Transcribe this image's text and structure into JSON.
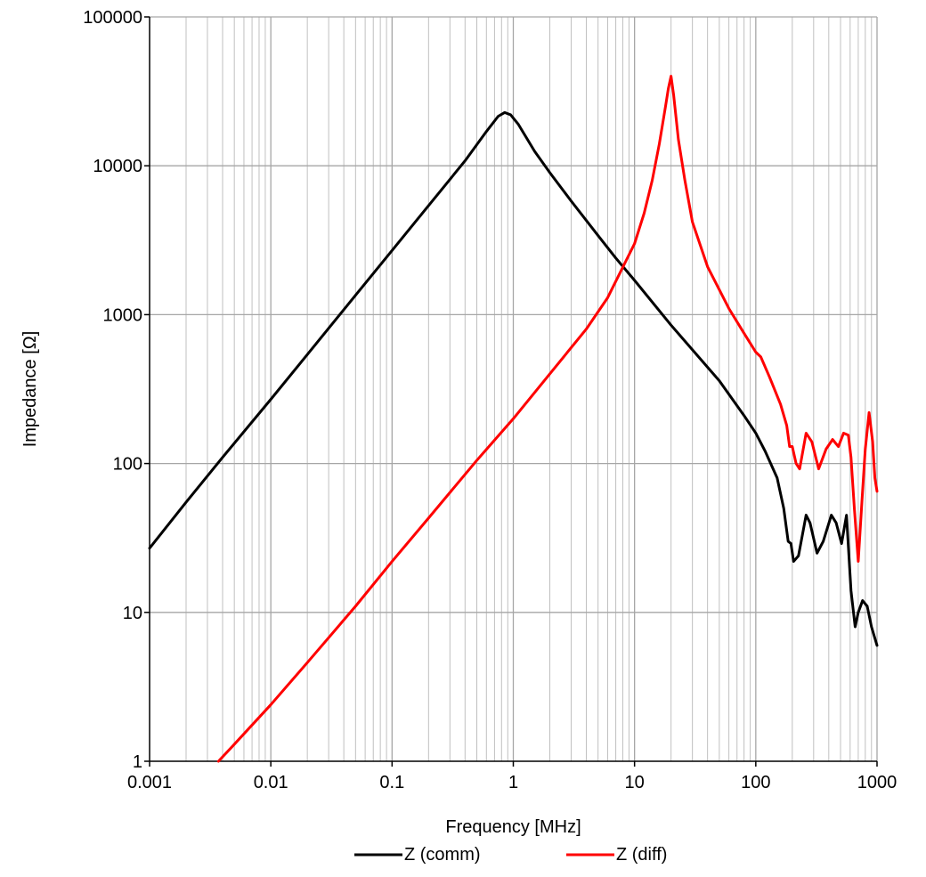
{
  "chart_data": {
    "type": "line",
    "title": "",
    "xlabel": "Frequency [MHz]",
    "ylabel": "Impedance [Ω]",
    "x_scale": "log",
    "y_scale": "log",
    "xlim": [
      0.001,
      1000
    ],
    "ylim": [
      1,
      100000
    ],
    "x_ticks": [
      "0.001",
      "0.01",
      "0.1",
      "1",
      "10",
      "100",
      "1000"
    ],
    "y_ticks": [
      "1",
      "10",
      "100",
      "1000",
      "10000",
      "100000"
    ],
    "grid": true,
    "legend_position": "bottom",
    "series": [
      {
        "name": "Z (comm)",
        "color": "#000000",
        "points": [
          [
            0.001,
            27
          ],
          [
            0.002,
            55
          ],
          [
            0.004,
            110
          ],
          [
            0.01,
            270
          ],
          [
            0.02,
            540
          ],
          [
            0.05,
            1350
          ],
          [
            0.1,
            2700
          ],
          [
            0.2,
            5400
          ],
          [
            0.4,
            10800
          ],
          [
            0.6,
            17000
          ],
          [
            0.75,
            21500
          ],
          [
            0.85,
            22800
          ],
          [
            0.95,
            22000
          ],
          [
            1.1,
            19000
          ],
          [
            1.5,
            12500
          ],
          [
            2,
            9000
          ],
          [
            3,
            5800
          ],
          [
            5,
            3400
          ],
          [
            7,
            2400
          ],
          [
            10,
            1700
          ],
          [
            20,
            850
          ],
          [
            50,
            360
          ],
          [
            80,
            210
          ],
          [
            100,
            160
          ],
          [
            120,
            120
          ],
          [
            150,
            80
          ],
          [
            170,
            50
          ],
          [
            185,
            30
          ],
          [
            195,
            29
          ],
          [
            205,
            22
          ],
          [
            225,
            24
          ],
          [
            260,
            45
          ],
          [
            280,
            40
          ],
          [
            320,
            25
          ],
          [
            360,
            30
          ],
          [
            420,
            45
          ],
          [
            460,
            40
          ],
          [
            510,
            29
          ],
          [
            560,
            45
          ],
          [
            610,
            14
          ],
          [
            660,
            8
          ],
          [
            700,
            10
          ],
          [
            760,
            12
          ],
          [
            830,
            11
          ],
          [
            900,
            8
          ],
          [
            1000,
            6
          ]
        ]
      },
      {
        "name": "Z (diff)",
        "color": "#ff0000",
        "points": [
          [
            0.0037,
            1
          ],
          [
            0.005,
            1.3
          ],
          [
            0.01,
            2.4
          ],
          [
            0.02,
            4.6
          ],
          [
            0.05,
            11
          ],
          [
            0.1,
            22
          ],
          [
            0.2,
            43
          ],
          [
            0.5,
            105
          ],
          [
            1,
            200
          ],
          [
            2,
            400
          ],
          [
            4,
            800
          ],
          [
            6,
            1300
          ],
          [
            10,
            3000
          ],
          [
            12,
            4800
          ],
          [
            14,
            8000
          ],
          [
            16,
            14000
          ],
          [
            18,
            25000
          ],
          [
            19,
            33000
          ],
          [
            20,
            40000
          ],
          [
            21,
            30000
          ],
          [
            23,
            15000
          ],
          [
            26,
            8000
          ],
          [
            30,
            4200
          ],
          [
            40,
            2100
          ],
          [
            60,
            1100
          ],
          [
            80,
            750
          ],
          [
            100,
            560
          ],
          [
            110,
            520
          ],
          [
            130,
            380
          ],
          [
            160,
            250
          ],
          [
            180,
            180
          ],
          [
            190,
            130
          ],
          [
            200,
            130
          ],
          [
            215,
            100
          ],
          [
            230,
            92
          ],
          [
            260,
            160
          ],
          [
            290,
            140
          ],
          [
            330,
            92
          ],
          [
            380,
            125
          ],
          [
            430,
            145
          ],
          [
            480,
            130
          ],
          [
            530,
            160
          ],
          [
            580,
            155
          ],
          [
            610,
            110
          ],
          [
            650,
            50
          ],
          [
            700,
            22
          ],
          [
            750,
            55
          ],
          [
            800,
            125
          ],
          [
            860,
            220
          ],
          [
            920,
            140
          ],
          [
            960,
            80
          ],
          [
            1000,
            65
          ]
        ]
      }
    ]
  }
}
